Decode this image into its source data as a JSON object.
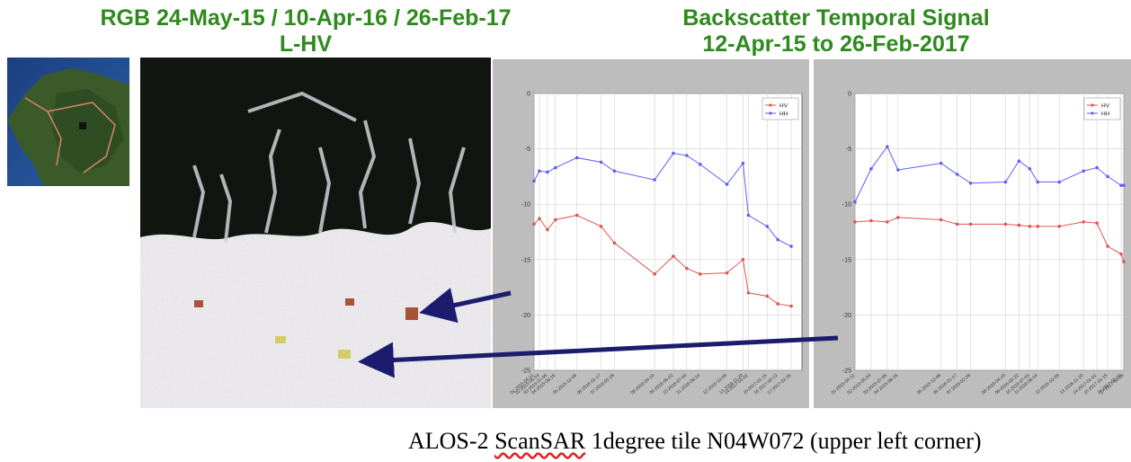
{
  "titles": {
    "left_line1": "RGB 24-May-15 / 10-Apr-16 / 26-Feb-17",
    "left_line2": "L-HV",
    "right_line1": "Backscatter Temporal Signal",
    "right_line2": "12-Apr-15 to 26-Feb-2017"
  },
  "caption": {
    "before": "ALOS-2 ",
    "underlined": "ScanSAR",
    "after": " 1degree tile N04W072 (upper left corner)"
  },
  "colors": {
    "title": "#2f8a1e",
    "hv": "#e05555",
    "hh": "#6060f0",
    "arrow": "#1c1c6e",
    "panel_bg": "#bdbdbd"
  },
  "chart_data": [
    {
      "type": "line",
      "ylim": [
        -25,
        0
      ],
      "yticks": [
        0,
        -5,
        -10,
        -15,
        -20,
        -25
      ],
      "legend": "top-right",
      "grid": true,
      "x": [
        "01 2015-04-12",
        "02 2015-05-24",
        "03 2015-07-05",
        "04 2015-08-16",
        "05 2015-12-06",
        "06 2016-01-17",
        "07 2016-02-28",
        "08 2016-04-10",
        "09 2016-05-22",
        "10 2016-07-03",
        "11 2016-08-14",
        "12 2016-10-09",
        "13 2016-11-20",
        "14 2017-01-01",
        "15 2017-01-15",
        "16 2017-02-12",
        "17 2017-02-26"
      ],
      "x_pos": [
        0,
        2,
        5,
        8,
        16,
        25,
        30,
        45,
        52,
        57,
        62,
        72,
        78,
        80,
        87,
        91,
        96
      ],
      "x_tick_labels": [
        "01 2015-04-12",
        "02 2015-05-24",
        "03 2015-07-05",
        "04 2015-08-16",
        "05 2015-12-06",
        "06 2016-01-17",
        "07 2016-02-28",
        "08 2016-04-10",
        "09 2016-05-22",
        "10 2016-07-03",
        "11 2016-08-14",
        "12 2016-10-09",
        "13 2016-11-20",
        "14 2017-01-01",
        "15 2017-01-15",
        "16 2017-02-12",
        "17 2017-02-26"
      ],
      "series": [
        {
          "name": "HV",
          "values": [
            -11.8,
            -11.3,
            -12.3,
            -11.4,
            -11.0,
            -12.0,
            -13.5,
            -16.3,
            -14.7,
            -15.8,
            -16.3,
            -16.2,
            -15.0,
            -18.0,
            -18.3,
            -19.0,
            -19.2
          ]
        },
        {
          "name": "HH",
          "values": [
            -7.9,
            -7.0,
            -7.1,
            -6.7,
            -5.8,
            -6.2,
            -7.0,
            -7.8,
            -5.4,
            -5.6,
            -6.4,
            -8.2,
            -6.3,
            -11.0,
            -12.0,
            -13.2,
            -13.8
          ]
        }
      ]
    },
    {
      "type": "line",
      "ylim": [
        -25,
        0
      ],
      "yticks": [
        0,
        -5,
        -10,
        -15,
        -20,
        -25
      ],
      "legend": "top-right",
      "grid": true,
      "x": [
        "01 2015-04-12",
        "02 2015-05-24",
        "03 2015-07-05",
        "04 2015-08-16",
        "05 2015-12-06",
        "06 2016-01-17",
        "07 2016-02-28",
        "08 2016-04-10",
        "09 2016-05-22",
        "10 2016-07-03",
        "11 2016-08-14",
        "12 2016-10-09",
        "13 2016-11-20",
        "14 2017-01-01",
        "15 2017-01-15",
        "16 2017-02-12",
        "17 2017-02-26"
      ],
      "x_pos": [
        0,
        6,
        12,
        16,
        32,
        38,
        43,
        56,
        61,
        65,
        68,
        76,
        85,
        90,
        94,
        99,
        100
      ],
      "x_tick_labels": [
        "01 2015-04-12",
        "02 2015-05-24",
        "03 2015-07-05",
        "04 2015-08-16",
        "05 2015-12-06",
        "06 2016-01-17",
        "07 2016-02-28",
        "08 2016-04-10",
        "09 2016-05-22",
        "10 2016-07-03",
        "11 2016-08-14",
        "12 2016-10-09",
        "13 2016-11-20",
        "14 2017-01-01",
        "15 2017-01-15",
        "16 2017-02-12",
        "17 2017-02-26"
      ],
      "series": [
        {
          "name": "HV",
          "values": [
            -11.6,
            -11.5,
            -11.6,
            -11.2,
            -11.4,
            -11.8,
            -11.8,
            -11.8,
            -11.9,
            -12.0,
            -12.0,
            -12.0,
            -11.6,
            -11.7,
            -13.8,
            -14.5,
            -15.2
          ]
        },
        {
          "name": "HH",
          "values": [
            -9.8,
            -6.8,
            -4.8,
            -6.9,
            -6.3,
            -7.3,
            -8.1,
            -8.0,
            -6.1,
            -6.8,
            -8.0,
            -8.0,
            -7.0,
            -6.7,
            -7.5,
            -8.3,
            -8.3
          ]
        }
      ]
    }
  ]
}
